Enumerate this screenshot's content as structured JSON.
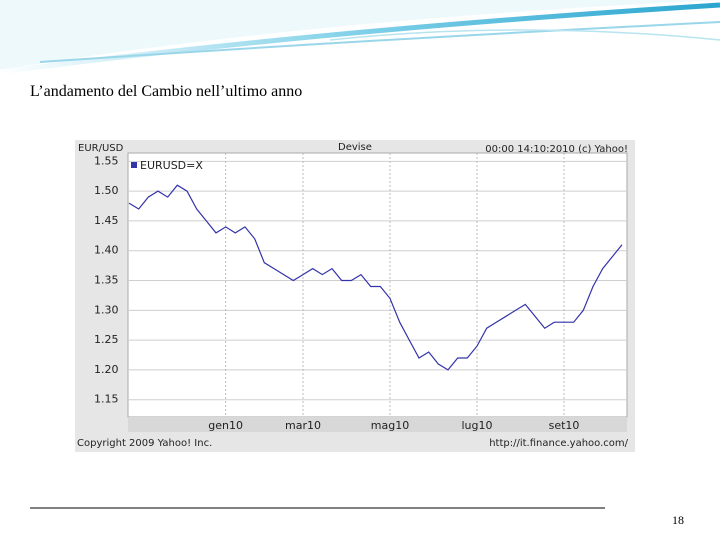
{
  "slide_title": "L’andamento del Cambio nell’ultimo anno",
  "page_number": "18",
  "chart_data": {
    "type": "line",
    "title": "Devise",
    "y_label": "EUR/USD",
    "timestamp": "00:00 14:10:2010 (c) Yahoo!",
    "copyright": "Copyright 2009 Yahoo! Inc.",
    "source": "http://it.finance.yahoo.com/",
    "categories": [
      null,
      null,
      null,
      null,
      null,
      null,
      null,
      null,
      null,
      null,
      "gen10",
      null,
      null,
      null,
      null,
      null,
      null,
      null,
      "mar10",
      null,
      null,
      null,
      null,
      null,
      null,
      null,
      null,
      "mag10",
      null,
      null,
      null,
      null,
      null,
      null,
      null,
      null,
      "lug10",
      null,
      null,
      null,
      null,
      null,
      null,
      null,
      null,
      "set10",
      null,
      null,
      null,
      null,
      null,
      null
    ],
    "series": [
      {
        "name": "EURUSD=X",
        "color": "#3333aa",
        "values": [
          1.48,
          1.47,
          1.49,
          1.5,
          1.49,
          1.51,
          1.5,
          1.47,
          1.45,
          1.43,
          1.44,
          1.43,
          1.44,
          1.42,
          1.38,
          1.37,
          1.36,
          1.35,
          1.36,
          1.37,
          1.36,
          1.37,
          1.35,
          1.35,
          1.36,
          1.34,
          1.34,
          1.32,
          1.28,
          1.25,
          1.22,
          1.23,
          1.21,
          1.2,
          1.22,
          1.22,
          1.24,
          1.27,
          1.28,
          1.29,
          1.3,
          1.31,
          1.29,
          1.27,
          1.28,
          1.28,
          1.28,
          1.3,
          1.34,
          1.37,
          1.39,
          1.41
        ]
      }
    ],
    "ylim": [
      1.121,
      1.564
    ],
    "yticks": [
      {
        "value": 1.15,
        "label": "1.15"
      },
      {
        "value": 1.2,
        "label": "1.20"
      },
      {
        "value": 1.25,
        "label": "1.25"
      },
      {
        "value": 1.3,
        "label": "1.30"
      },
      {
        "value": 1.35,
        "label": "1.35"
      },
      {
        "value": 1.4,
        "label": "1.40"
      },
      {
        "value": 1.45,
        "label": "1.45"
      },
      {
        "value": 1.5,
        "label": "1.50"
      },
      {
        "value": 1.55,
        "label": "1.55"
      }
    ],
    "grid": true,
    "legend": "top-left"
  }
}
